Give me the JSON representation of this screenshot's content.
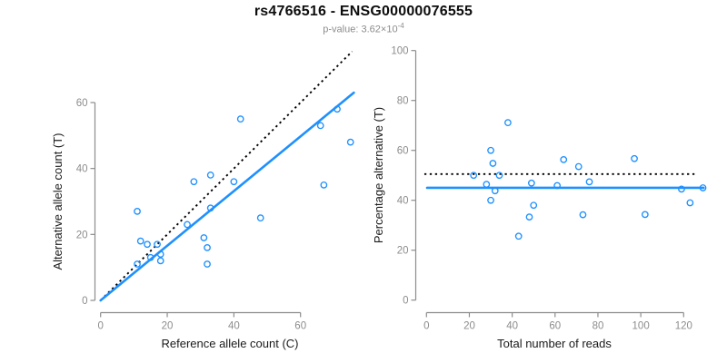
{
  "header": {
    "title": "rs4766516 - ENSG00000076555",
    "p_label": "p-value: ",
    "p_mantissa": "3.62",
    "p_times": "×10",
    "p_exponent": "-4"
  },
  "colors": {
    "point_blue": "#1E90FF",
    "fit_blue": "#1E90FF",
    "reference_black": "#000000",
    "axis_gray": "#8c8c8c",
    "tick_label_gray": "#8c8c8c",
    "axis_title_dark": "#1a1a1a",
    "title_black": "#0d0d0d",
    "subtitle_gray": "#8c8c8c"
  },
  "chart_data": [
    {
      "id": "allele-count-scatter",
      "type": "scatter",
      "title": "",
      "xlabel": "Reference allele count (C)",
      "ylabel": "Alternative allele count (T)",
      "xlim": [
        0,
        60
      ],
      "ylim": [
        0,
        60
      ],
      "xticks": [
        0,
        20,
        40,
        60
      ],
      "yticks": [
        0,
        20,
        40,
        60
      ],
      "grid": false,
      "legend": null,
      "points": [
        [
          11,
          27
        ],
        [
          12,
          18
        ],
        [
          14,
          17
        ],
        [
          11,
          11
        ],
        [
          17,
          17
        ],
        [
          15,
          13
        ],
        [
          18,
          14
        ],
        [
          18,
          12
        ],
        [
          26,
          23
        ],
        [
          31,
          19
        ],
        [
          32,
          16
        ],
        [
          32,
          11
        ],
        [
          28,
          36
        ],
        [
          33,
          38
        ],
        [
          33,
          28
        ],
        [
          40,
          36
        ],
        [
          48,
          25
        ],
        [
          42,
          55
        ],
        [
          67,
          35
        ],
        [
          66,
          53
        ],
        [
          75,
          48
        ],
        [
          71,
          58
        ]
      ],
      "reference_line": {
        "name": "identity-line",
        "style": "dotted",
        "color": "#000000",
        "from": [
          0,
          0
        ],
        "to": [
          75.5,
          75.5
        ]
      },
      "fit_line": {
        "name": "regression-line",
        "style": "solid",
        "color": "#1E90FF",
        "from": [
          0,
          0
        ],
        "to": [
          76,
          63
        ]
      }
    },
    {
      "id": "percentage-scatter",
      "type": "scatter",
      "title": "",
      "xlabel": "Total number of reads",
      "ylabel": "Percentage alternative (T)",
      "xlim": [
        0,
        120
      ],
      "ylim": [
        0,
        100
      ],
      "xticks": [
        0,
        20,
        40,
        60,
        80,
        100,
        120
      ],
      "yticks": [
        0,
        20,
        40,
        60,
        80,
        100
      ],
      "grid": false,
      "legend": null,
      "points": [
        [
          38,
          71.1
        ],
        [
          30,
          60
        ],
        [
          31,
          54.8
        ],
        [
          22,
          50
        ],
        [
          34,
          50
        ],
        [
          28,
          46.4
        ],
        [
          32,
          43.8
        ],
        [
          30,
          40
        ],
        [
          49,
          46.9
        ],
        [
          50,
          38
        ],
        [
          48,
          33.3
        ],
        [
          43,
          25.6
        ],
        [
          64,
          56.3
        ],
        [
          71,
          53.5
        ],
        [
          61,
          45.9
        ],
        [
          76,
          47.4
        ],
        [
          73,
          34.2
        ],
        [
          97,
          56.7
        ],
        [
          102,
          34.3
        ],
        [
          119,
          44.5
        ],
        [
          123,
          39
        ],
        [
          129,
          45
        ]
      ],
      "reference_line": {
        "name": "expected-50pct-line",
        "style": "dotted",
        "color": "#000000",
        "from": [
          -1,
          50.5
        ],
        "to": [
          126,
          50.5
        ]
      },
      "fit_line": {
        "name": "fitted-mean-line",
        "style": "solid",
        "color": "#1E90FF",
        "from": [
          0.3,
          45
        ],
        "to": [
          129.3,
          45
        ]
      }
    }
  ]
}
